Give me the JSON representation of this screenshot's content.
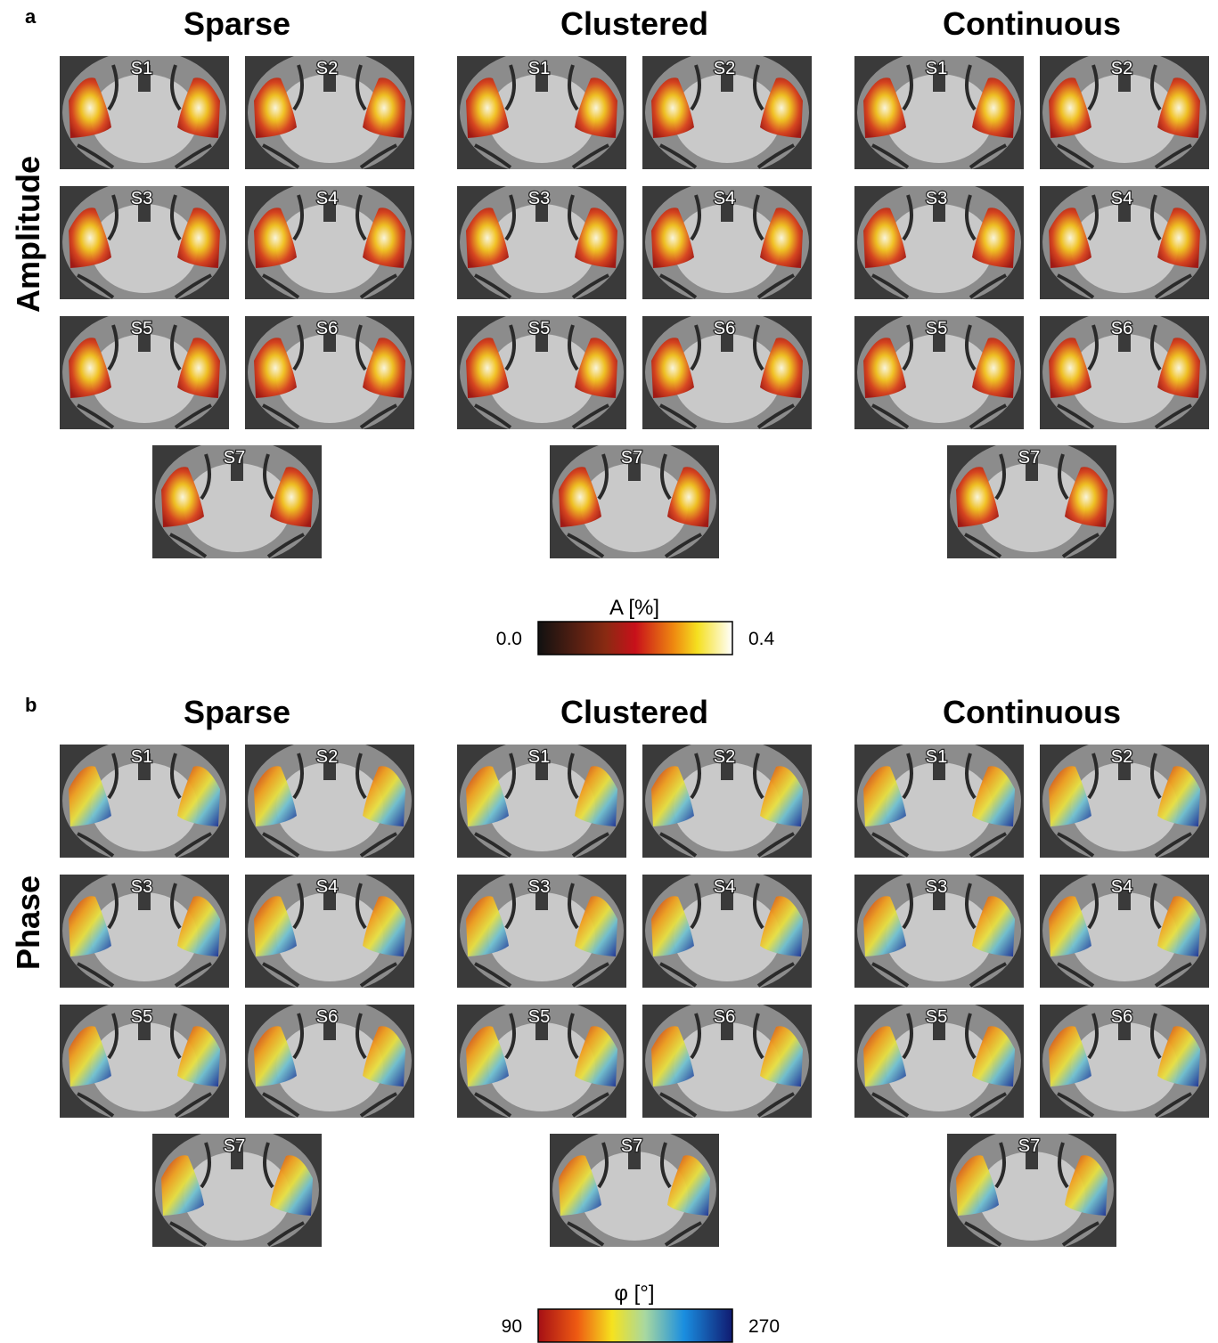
{
  "panels": [
    {
      "letter": "a",
      "row_label": "Amplitude",
      "columns": [
        "Sparse",
        "Clustered",
        "Continuous"
      ],
      "subjects": [
        "S1",
        "S2",
        "S3",
        "S4",
        "S5",
        "S6",
        "S7"
      ],
      "colorbar": {
        "label": "A [%]",
        "min": "0.0",
        "max": "0.4"
      }
    },
    {
      "letter": "b",
      "row_label": "Phase",
      "columns": [
        "Sparse",
        "Clustered",
        "Continuous"
      ],
      "subjects": [
        "S1",
        "S2",
        "S3",
        "S4",
        "S5",
        "S6",
        "S7"
      ],
      "colorbar": {
        "label": "φ [°]",
        "min": "90",
        "max": "270"
      }
    }
  ]
}
